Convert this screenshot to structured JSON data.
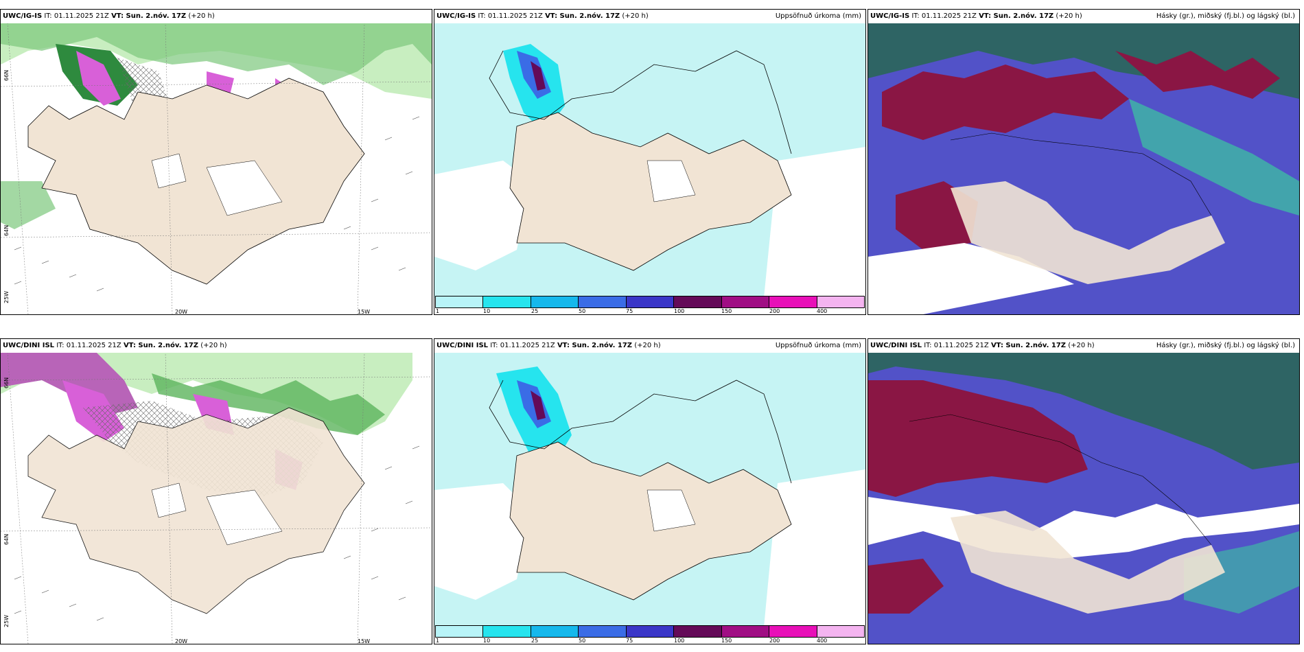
{
  "panels": [
    {
      "model": "UWC/IG-IS",
      "it": "IT: 01.11.2025 21Z",
      "vt": "VT: Sun. 2.nóv. 17Z",
      "lead": "(+20 h)",
      "field": "",
      "type": "cloud_wind"
    },
    {
      "model": "UWC/IG-IS",
      "it": "IT: 01.11.2025 21Z",
      "vt": "VT: Sun. 2.nóv. 17Z",
      "lead": "(+20 h)",
      "field": "Uppsöfnuð úrkoma (mm)",
      "type": "precip"
    },
    {
      "model": "UWC/IG-IS",
      "it": "IT: 01.11.2025 21Z",
      "vt": "VT: Sun. 2.nóv. 17Z",
      "lead": "(+20 h)",
      "field": "Hásky (gr.), miðský (fj.bl.) og lágský (bl.)",
      "type": "cloud_layers"
    },
    {
      "model": "UWC/DINI ISL",
      "it": "IT: 01.11.2025 21Z",
      "vt": "VT: Sun. 2.nóv. 17Z",
      "lead": "(+20 h)",
      "field": "",
      "type": "cloud_wind"
    },
    {
      "model": "UWC/DINI ISL",
      "it": "IT: 01.11.2025 21Z",
      "vt": "VT: Sun. 2.nóv. 17Z",
      "lead": "(+20 h)",
      "field": "Uppsöfnuð úrkoma (mm)",
      "type": "precip"
    },
    {
      "model": "UWC/DINI ISL",
      "it": "IT: 01.11.2025 21Z",
      "vt": "VT: Sun. 2.nóv. 17Z",
      "lead": "(+20 h)",
      "field": "Hásky (gr.), miðský (fj.bl.) og lágský (bl.)",
      "type": "cloud_layers"
    }
  ],
  "grid_labels": {
    "lat_66": "66N",
    "lat_64": "64N",
    "lon_25": "25W",
    "lon_20": "20W",
    "lon_15": "15W"
  },
  "precip_legend": {
    "ticks": [
      "1",
      "10",
      "25",
      "50",
      "75",
      "100",
      "150",
      "200",
      "400"
    ],
    "colors": [
      "#b8f4f8",
      "#26e4ee",
      "#16b8ec",
      "#3a6ce6",
      "#3a36c8",
      "#640a58",
      "#a00e84",
      "#e810b8",
      "#f4b4f0"
    ]
  },
  "colors": {
    "land": "#f1e4d4",
    "sea_low_cloud": "#c6f4f4",
    "high_cloud": "#2e6464",
    "mid_cloud": "#8a1644",
    "low_cloud": "#5252c8",
    "green_light": "#b8e6b0",
    "green_mid": "#5cb45c",
    "green_dark": "#1c6c2c",
    "magenta": "#d860d8"
  }
}
